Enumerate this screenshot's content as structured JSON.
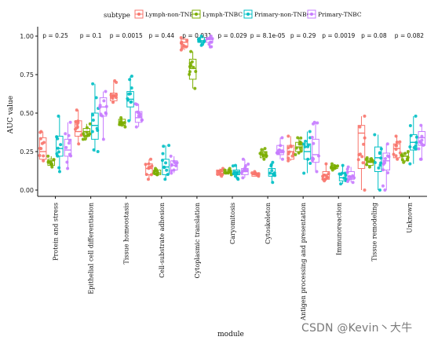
{
  "chart_data": {
    "type": "box",
    "xlabel": "module",
    "ylabel": "AUC value",
    "ylim": [
      0,
      1
    ],
    "yticks": [
      "0.00",
      "0.25",
      "0.50",
      "0.75",
      "1.00"
    ],
    "grid": false,
    "legend": {
      "title": "subtype",
      "position": "top"
    },
    "categories": [
      "Protein and stress",
      "Epithelial cell differentiation",
      "Tissue homeostasis",
      "Cell-substrate adhesion",
      "Cytoplasmic translation",
      "Caryomitosis",
      "Cytoskeleton",
      "Antigen processing and presentation",
      "Immunoreaction",
      "Tissue remodeling",
      "Unknown"
    ],
    "pvalues": [
      "p = 0.25",
      "p = 0.1",
      "p = 0.0015",
      "p = 0.44",
      "p = 0.031",
      "p = 0.029",
      "p = 8.1e-05",
      "p = 0.29",
      "p = 0.0019",
      "p = 0.08",
      "p = 0.082"
    ],
    "series": [
      {
        "name": "Lymph-non-TNBC",
        "color": "#F8766D",
        "boxes": [
          {
            "min": 0.19,
            "q1": 0.2,
            "median": 0.25,
            "q3": 0.34,
            "max": 0.38
          },
          {
            "min": 0.3,
            "q1": 0.35,
            "median": 0.38,
            "q3": 0.45,
            "max": 0.52
          },
          {
            "min": 0.57,
            "q1": 0.58,
            "median": 0.61,
            "q3": 0.63,
            "max": 0.71
          },
          {
            "min": 0.07,
            "q1": 0.1,
            "median": 0.14,
            "q3": 0.17,
            "max": 0.2
          },
          {
            "min": 0.91,
            "q1": 0.93,
            "median": 0.96,
            "q3": 0.98,
            "max": 0.99
          },
          {
            "min": 0.09,
            "q1": 0.1,
            "median": 0.12,
            "q3": 0.13,
            "max": 0.14
          },
          {
            "min": 0.09,
            "q1": 0.09,
            "median": 0.1,
            "q3": 0.11,
            "max": 0.12
          },
          {
            "min": 0.19,
            "q1": 0.2,
            "median": 0.25,
            "q3": 0.29,
            "max": 0.35
          },
          {
            "min": 0.06,
            "q1": 0.07,
            "median": 0.1,
            "q3": 0.12,
            "max": 0.17
          },
          {
            "min": 0.0,
            "q1": 0.14,
            "median": 0.37,
            "q3": 0.42,
            "max": 0.48
          },
          {
            "min": 0.2,
            "q1": 0.21,
            "median": 0.27,
            "q3": 0.3,
            "max": 0.35
          }
        ]
      },
      {
        "name": "Lymph-TNBC",
        "color": "#7CAE00",
        "boxes": [
          {
            "min": 0.15,
            "q1": 0.16,
            "median": 0.19,
            "q3": 0.2,
            "max": 0.22
          },
          {
            "min": 0.33,
            "q1": 0.35,
            "median": 0.38,
            "q3": 0.4,
            "max": 0.43
          },
          {
            "min": 0.41,
            "q1": 0.42,
            "median": 0.44,
            "q3": 0.46,
            "max": 0.47
          },
          {
            "min": 0.1,
            "q1": 0.1,
            "median": 0.11,
            "q3": 0.13,
            "max": 0.14
          },
          {
            "min": 0.66,
            "q1": 0.72,
            "median": 0.79,
            "q3": 0.85,
            "max": 0.9
          },
          {
            "min": 0.1,
            "q1": 0.11,
            "median": 0.12,
            "q3": 0.13,
            "max": 0.14
          },
          {
            "min": 0.2,
            "q1": 0.21,
            "median": 0.23,
            "q3": 0.25,
            "max": 0.27
          },
          {
            "min": 0.23,
            "q1": 0.25,
            "median": 0.28,
            "q3": 0.31,
            "max": 0.34
          },
          {
            "min": 0.13,
            "q1": 0.14,
            "median": 0.15,
            "q3": 0.16,
            "max": 0.17
          },
          {
            "min": 0.15,
            "q1": 0.16,
            "median": 0.18,
            "q3": 0.2,
            "max": 0.21
          },
          {
            "min": 0.18,
            "q1": 0.19,
            "median": 0.22,
            "q3": 0.24,
            "max": 0.25
          }
        ]
      },
      {
        "name": "Primary-non-TNBC",
        "color": "#00BFC4",
        "boxes": [
          {
            "min": 0.12,
            "q1": 0.22,
            "median": 0.27,
            "q3": 0.35,
            "max": 0.48
          },
          {
            "min": 0.25,
            "q1": 0.33,
            "median": 0.42,
            "q3": 0.5,
            "max": 0.69
          },
          {
            "min": 0.45,
            "q1": 0.54,
            "median": 0.59,
            "q3": 0.64,
            "max": 0.74
          },
          {
            "min": 0.07,
            "q1": 0.1,
            "median": 0.15,
            "q3": 0.2,
            "max": 0.29
          },
          {
            "min": 0.94,
            "q1": 0.96,
            "median": 0.97,
            "q3": 0.99,
            "max": 1.0
          },
          {
            "min": 0.07,
            "q1": 0.1,
            "median": 0.12,
            "q3": 0.13,
            "max": 0.16
          },
          {
            "min": 0.05,
            "q1": 0.09,
            "median": 0.11,
            "q3": 0.14,
            "max": 0.18
          },
          {
            "min": 0.11,
            "q1": 0.2,
            "median": 0.25,
            "q3": 0.3,
            "max": 0.38
          },
          {
            "min": 0.04,
            "q1": 0.06,
            "median": 0.08,
            "q3": 0.11,
            "max": 0.16
          },
          {
            "min": 0.0,
            "q1": 0.12,
            "median": 0.21,
            "q3": 0.28,
            "max": 0.36
          },
          {
            "min": 0.17,
            "q1": 0.26,
            "median": 0.31,
            "q3": 0.36,
            "max": 0.48
          }
        ]
      },
      {
        "name": "Primary-TNBC",
        "color": "#C77CFF",
        "boxes": [
          {
            "min": 0.14,
            "q1": 0.22,
            "median": 0.26,
            "q3": 0.33,
            "max": 0.44
          },
          {
            "min": 0.33,
            "q1": 0.48,
            "median": 0.54,
            "q3": 0.6,
            "max": 0.64
          },
          {
            "min": 0.41,
            "q1": 0.44,
            "median": 0.47,
            "q3": 0.51,
            "max": 0.56
          },
          {
            "min": 0.11,
            "q1": 0.13,
            "median": 0.16,
            "q3": 0.19,
            "max": 0.22
          },
          {
            "min": 0.93,
            "q1": 0.96,
            "median": 0.98,
            "q3": 0.99,
            "max": 1.0
          },
          {
            "min": 0.08,
            "q1": 0.1,
            "median": 0.12,
            "q3": 0.14,
            "max": 0.2
          },
          {
            "min": 0.2,
            "q1": 0.23,
            "median": 0.26,
            "q3": 0.29,
            "max": 0.34
          },
          {
            "min": 0.12,
            "q1": 0.18,
            "median": 0.23,
            "q3": 0.33,
            "max": 0.44
          },
          {
            "min": 0.05,
            "q1": 0.07,
            "median": 0.09,
            "q3": 0.12,
            "max": 0.15
          },
          {
            "min": 0.0,
            "q1": 0.13,
            "median": 0.19,
            "q3": 0.24,
            "max": 0.3
          },
          {
            "min": 0.2,
            "q1": 0.29,
            "median": 0.34,
            "q3": 0.38,
            "max": 0.42
          }
        ]
      }
    ]
  },
  "watermark": "CSDN @Kevin丶大牛"
}
